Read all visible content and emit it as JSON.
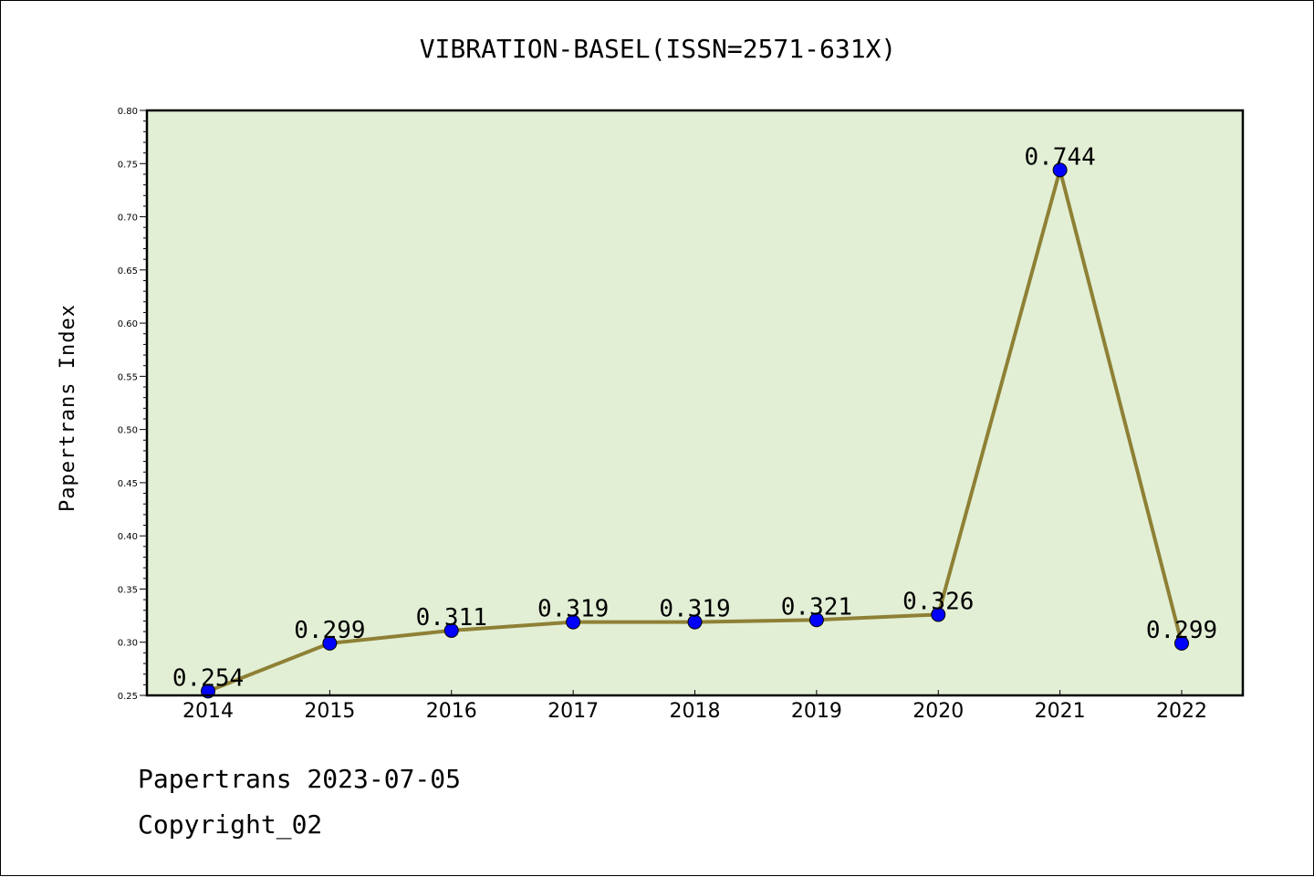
{
  "chart_data": {
    "type": "line",
    "title": "VIBRATION-BASEL(ISSN=2571-631X)",
    "xlabel": "",
    "ylabel": "Papertrans Index",
    "categories": [
      "2014",
      "2015",
      "2016",
      "2017",
      "2018",
      "2019",
      "2020",
      "2021",
      "2022"
    ],
    "series": [
      {
        "values": [
          0.254,
          0.299,
          0.311,
          0.319,
          0.319,
          0.321,
          0.326,
          0.744,
          0.299
        ],
        "data_labels": [
          "0.254",
          "0.299",
          "0.311",
          "0.319",
          "0.319",
          "0.321",
          "0.326",
          "0.744",
          "0.299"
        ]
      }
    ],
    "ylim": [
      0.25,
      0.8
    ],
    "yticks": [
      "0.25",
      "0.30",
      "0.35",
      "0.40",
      "0.45",
      "0.50",
      "0.55",
      "0.60",
      "0.65",
      "0.70",
      "0.75",
      "0.80"
    ],
    "grid": false,
    "colors": {
      "plot_background": "#e2efd5",
      "line": "#8e8035",
      "marker": "#0000ff"
    }
  },
  "footer": {
    "line1": "Papertrans 2023-07-05",
    "line2": "Copyright_02"
  }
}
